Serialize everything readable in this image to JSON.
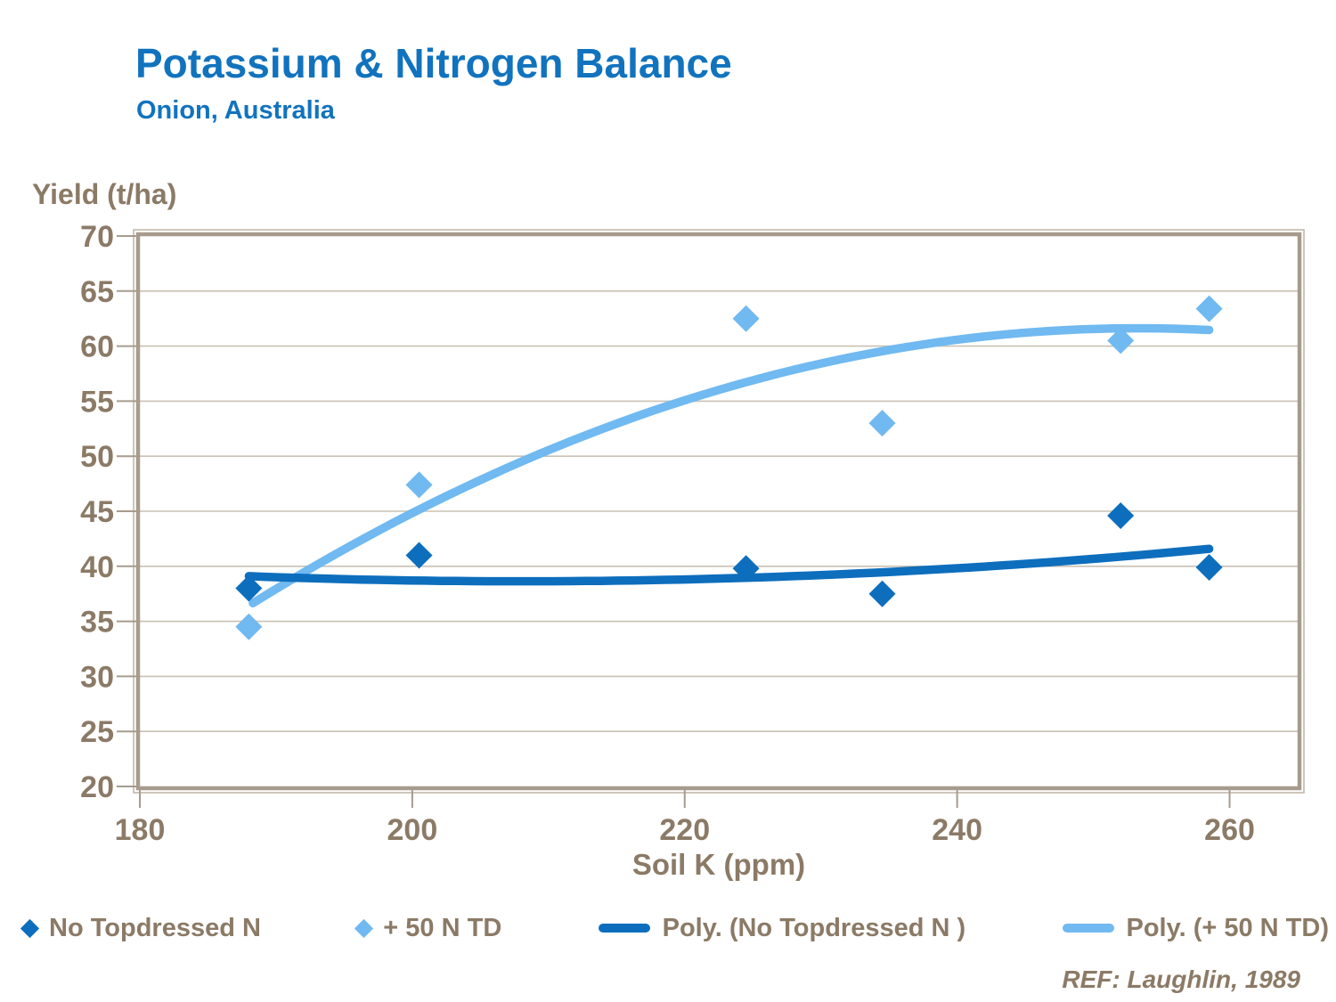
{
  "title": "Potassium & Nitrogen Balance",
  "subtitle": "Onion, Australia",
  "ref": "REF: Laughlin, 1989",
  "colors": {
    "title_blue": "#1173BE",
    "series_dark": "#0D6EBD",
    "series_light": "#70B9F1",
    "axis_text": "#8B7A66",
    "frame": "#A79B8D",
    "frame_outer": "#C2B8AA",
    "gridline": "#C9C1B4",
    "background": "#FFFFFF"
  },
  "chart_data": {
    "type": "scatter",
    "title": "Potassium & Nitrogen Balance",
    "subtitle": "Onion, Australia",
    "xlabel": "Soil K (ppm)",
    "ylabel": "Yield (t/ha)",
    "xlim": [
      180,
      265
    ],
    "ylim": [
      20,
      70
    ],
    "x_ticks": [
      180,
      200,
      220,
      240,
      260
    ],
    "y_ticks": [
      20,
      25,
      30,
      35,
      40,
      45,
      50,
      55,
      60,
      65,
      70
    ],
    "grid": "horizontal",
    "legend_position": "bottom",
    "series": [
      {
        "name": "No Topdressed N",
        "marker": "diamond",
        "color_key": "series_dark",
        "points": [
          [
            188,
            38.0
          ],
          [
            200.5,
            41.0
          ],
          [
            224.5,
            39.8
          ],
          [
            234.5,
            37.5
          ],
          [
            252,
            44.6
          ],
          [
            258.5,
            39.9
          ]
        ]
      },
      {
        "name": "+ 50 N TD",
        "marker": "diamond",
        "color_key": "series_light",
        "points": [
          [
            188,
            34.5
          ],
          [
            200.5,
            47.4
          ],
          [
            224.5,
            62.5
          ],
          [
            234.5,
            53.0
          ],
          [
            252,
            60.5
          ],
          [
            258.5,
            63.4
          ]
        ]
      }
    ],
    "trendlines": [
      {
        "name": "Poly. (+ 50 N TD)",
        "color_key": "series_light",
        "poly_coeffs": [
          -0.0059163,
          2.996825,
          -317.8774
        ],
        "x_range": [
          188.3,
          258.5
        ]
      },
      {
        "name": "Poly. (No Topdressed N )",
        "color_key": "series_dark",
        "poly_coeffs": [
          0.0011553,
          -0.480543,
          88.6072
        ],
        "x_range": [
          188.0,
          258.5
        ]
      }
    ]
  },
  "legend": {
    "items": [
      {
        "marker": "diamond",
        "color_key": "series_dark",
        "label": "No Topdressed N"
      },
      {
        "marker": "diamond",
        "color_key": "series_light",
        "label": "+ 50 N TD"
      },
      {
        "marker": "line",
        "color_key": "series_dark",
        "label": "Poly. (No Topdressed N )"
      },
      {
        "marker": "line",
        "color_key": "series_light",
        "label": "Poly. (+ 50 N TD)"
      }
    ]
  }
}
